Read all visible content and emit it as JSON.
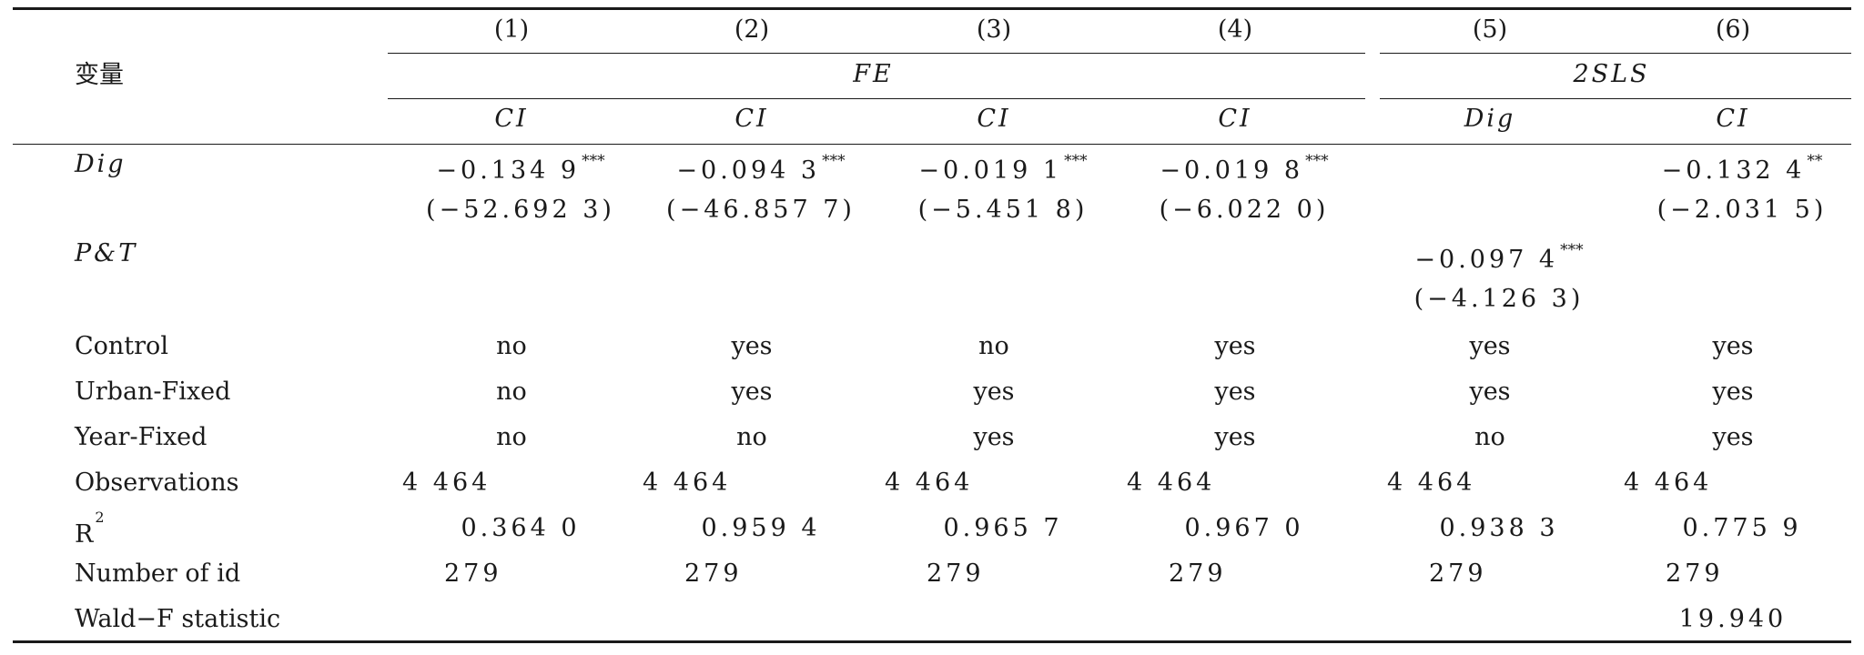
{
  "header": {
    "variable_label": "变量",
    "column_numbers": [
      "(1)",
      "(2)",
      "(3)",
      "(4)",
      "(5)",
      "(6)"
    ],
    "group_fe": "FE",
    "group_2sls": "2SLS",
    "dependent_vars": [
      "CI",
      "CI",
      "CI",
      "CI",
      "Dig",
      "CI"
    ]
  },
  "rows": {
    "dig": {
      "label": "Dig",
      "coefs": [
        {
          "col": 0,
          "value": "−0.134 9",
          "stars": "***"
        },
        {
          "col": 1,
          "value": "−0.094 3",
          "stars": "***"
        },
        {
          "col": 2,
          "value": "−0.019 1",
          "stars": "***"
        },
        {
          "col": 3,
          "value": "−0.019 8",
          "stars": "***"
        },
        {
          "col": 5,
          "value": "−0.132 4",
          "stars": "**"
        }
      ],
      "tstats": [
        {
          "col": 0,
          "value": "(−52.692 3)"
        },
        {
          "col": 1,
          "value": "(−46.857 7)"
        },
        {
          "col": 2,
          "value": "(−5.451 8)"
        },
        {
          "col": 3,
          "value": "(−6.022 0)"
        },
        {
          "col": 5,
          "value": "(−2.031 5)"
        }
      ]
    },
    "pt": {
      "label": "P&T",
      "coef": {
        "col": 4,
        "value": "−0.097 4",
        "stars": "***"
      },
      "tstat": {
        "col": 4,
        "value": "(−4.126 3)"
      }
    },
    "control": {
      "label": "Control",
      "values": [
        "no",
        "yes",
        "no",
        "yes",
        "yes",
        "yes"
      ]
    },
    "urban_fixed": {
      "label": "Urban-Fixed",
      "values": [
        "no",
        "yes",
        "yes",
        "yes",
        "yes",
        "yes"
      ]
    },
    "year_fixed": {
      "label": "Year-Fixed",
      "values": [
        "no",
        "no",
        "yes",
        "yes",
        "no",
        "yes"
      ]
    },
    "observations": {
      "label": "Observations",
      "values": [
        "4 464",
        "4 464",
        "4 464",
        "4 464",
        "4 464",
        "4 464"
      ]
    },
    "r2": {
      "label": "R",
      "label_sup": "2",
      "values": [
        "0.364 0",
        "0.959 4",
        "0.965 7",
        "0.967 0",
        "0.938 3",
        "0.775 9"
      ]
    },
    "number_of_id": {
      "label": "Number of id",
      "values": [
        "279",
        "279",
        "279",
        "279",
        "279",
        "279"
      ]
    },
    "wald_f": {
      "label": "Wald−F statistic",
      "values": [
        {
          "col": 5,
          "value": "19.940"
        }
      ]
    }
  }
}
